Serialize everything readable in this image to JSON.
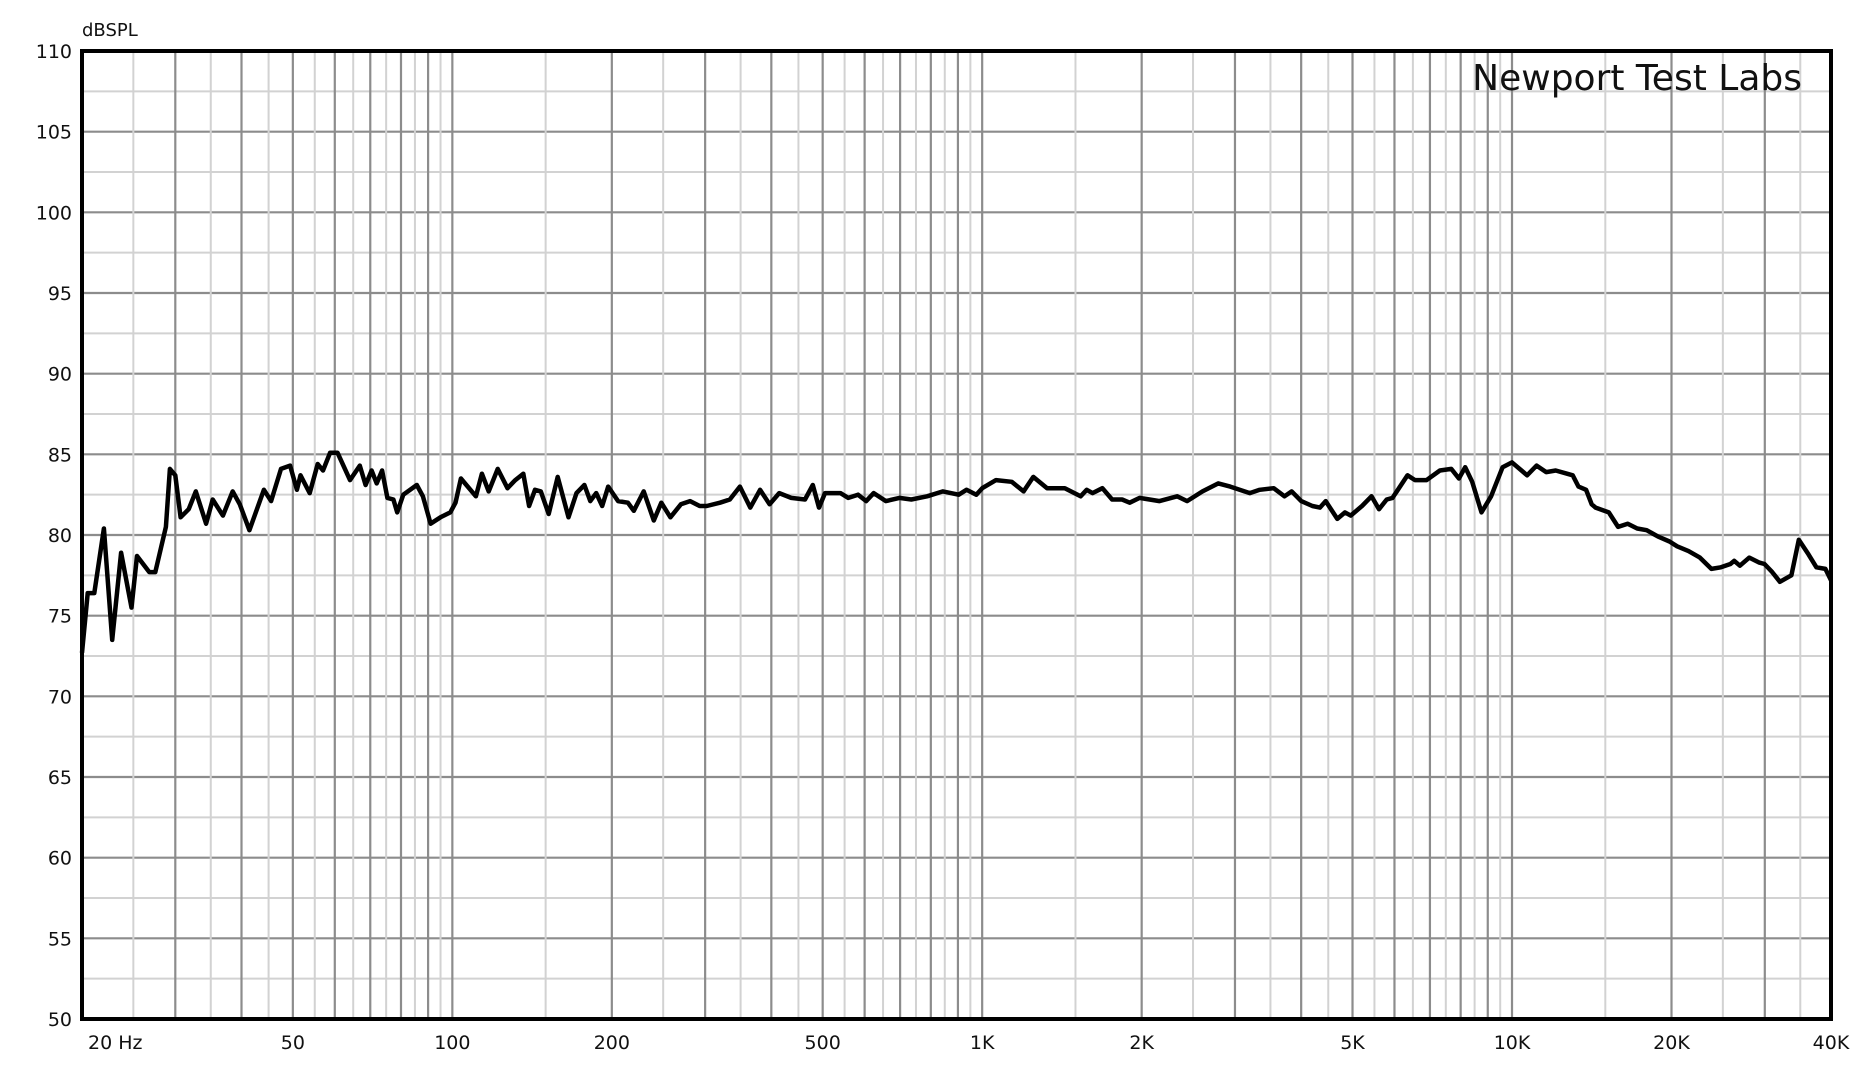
{
  "chart_data": {
    "type": "line",
    "title": "",
    "watermark": "Newport Test Labs",
    "ylabel": "dBSPL",
    "xlabel": "",
    "x_scale": "log",
    "xlim": [
      20,
      40000
    ],
    "ylim": [
      50,
      110
    ],
    "grid": true,
    "line_color": "#000000",
    "grid_major_color": "#8c8c8c",
    "grid_minor_color": "#d2d2d2",
    "y_ticks": [
      50,
      55,
      60,
      65,
      70,
      75,
      80,
      85,
      90,
      95,
      100,
      105,
      110
    ],
    "y_tick_labels": [
      "50",
      "55",
      "60",
      "65",
      "70",
      "75",
      "80",
      "85",
      "90",
      "95",
      "100",
      "105",
      "110"
    ],
    "x_ticks": [
      20,
      50,
      100,
      200,
      500,
      1000,
      2000,
      5000,
      10000,
      20000,
      40000
    ],
    "x_tick_labels": [
      "20  Hz",
      "50",
      "100",
      "200",
      "500",
      "1K",
      "2K",
      "5K",
      "10K",
      "20K",
      "40K"
    ],
    "series": [
      {
        "points": [
          [
            20,
            72.7
          ],
          [
            20.5,
            76.4
          ],
          [
            21.1,
            76.4
          ],
          [
            22.0,
            80.4
          ],
          [
            22.8,
            73.5
          ],
          [
            23.7,
            78.9
          ],
          [
            24.8,
            75.5
          ],
          [
            25.4,
            78.7
          ],
          [
            26.8,
            77.7
          ],
          [
            27.5,
            77.7
          ],
          [
            28.8,
            80.5
          ],
          [
            29.3,
            84.1
          ],
          [
            30.0,
            83.7
          ],
          [
            30.7,
            81.1
          ],
          [
            31.8,
            81.6
          ],
          [
            32.8,
            82.7
          ],
          [
            34.3,
            80.7
          ],
          [
            35.3,
            82.2
          ],
          [
            36.9,
            81.2
          ],
          [
            38.5,
            82.7
          ],
          [
            39.7,
            81.9
          ],
          [
            41.4,
            80.3
          ],
          [
            44.1,
            82.8
          ],
          [
            45.5,
            82.1
          ],
          [
            47.5,
            84.1
          ],
          [
            49.4,
            84.3
          ],
          [
            50.9,
            82.8
          ],
          [
            51.7,
            83.7
          ],
          [
            53.8,
            82.6
          ],
          [
            55.7,
            84.4
          ],
          [
            57.0,
            84.0
          ],
          [
            58.8,
            85.1
          ],
          [
            60.7,
            85.1
          ],
          [
            64.1,
            83.4
          ],
          [
            66.9,
            84.3
          ],
          [
            68.6,
            83.1
          ],
          [
            70.4,
            84.0
          ],
          [
            72.0,
            83.2
          ],
          [
            73.7,
            84.0
          ],
          [
            75.4,
            82.3
          ],
          [
            77.4,
            82.2
          ],
          [
            78.7,
            81.4
          ],
          [
            80.8,
            82.5
          ],
          [
            85.7,
            83.1
          ],
          [
            88.0,
            82.4
          ],
          [
            91.0,
            80.7
          ],
          [
            95.0,
            81.1
          ],
          [
            99.1,
            81.4
          ],
          [
            101.4,
            82.0
          ],
          [
            103.8,
            83.5
          ],
          [
            110.8,
            82.4
          ],
          [
            113.7,
            83.8
          ],
          [
            117.1,
            82.7
          ],
          [
            121.8,
            84.1
          ],
          [
            127.1,
            82.9
          ],
          [
            131.5,
            83.4
          ],
          [
            136.1,
            83.8
          ],
          [
            139.6,
            81.8
          ],
          [
            143.2,
            82.8
          ],
          [
            146.9,
            82.7
          ],
          [
            152.0,
            81.3
          ],
          [
            158.1,
            83.6
          ],
          [
            165.7,
            81.1
          ],
          [
            171.5,
            82.6
          ],
          [
            177.5,
            83.1
          ],
          [
            182.1,
            82.1
          ],
          [
            186.9,
            82.6
          ],
          [
            191.8,
            81.8
          ],
          [
            196.9,
            83.0
          ],
          [
            205.5,
            82.1
          ],
          [
            214.5,
            82.0
          ],
          [
            220.0,
            81.5
          ],
          [
            229.7,
            82.7
          ],
          [
            240.0,
            80.9
          ],
          [
            248.0,
            82.0
          ],
          [
            258.0,
            81.1
          ],
          [
            270.0,
            81.9
          ],
          [
            281.0,
            82.1
          ],
          [
            293.0,
            81.8
          ],
          [
            302,
            81.8
          ],
          [
            320,
            82.0
          ],
          [
            334,
            82.2
          ],
          [
            349,
            83.0
          ],
          [
            365,
            81.7
          ],
          [
            381,
            82.8
          ],
          [
            397,
            81.9
          ],
          [
            414,
            82.6
          ],
          [
            436,
            82.3
          ],
          [
            463,
            82.2
          ],
          [
            479,
            83.1
          ],
          [
            492,
            81.7
          ],
          [
            505,
            82.6
          ],
          [
            540,
            82.6
          ],
          [
            559,
            82.3
          ],
          [
            583,
            82.5
          ],
          [
            604,
            82.1
          ],
          [
            624,
            82.6
          ],
          [
            658,
            82.1
          ],
          [
            698,
            82.3
          ],
          [
            735,
            82.2
          ],
          [
            787,
            82.4
          ],
          [
            843,
            82.7
          ],
          [
            903,
            82.5
          ],
          [
            934,
            82.8
          ],
          [
            975,
            82.5
          ],
          [
            1000,
            82.9
          ],
          [
            1062,
            83.4
          ],
          [
            1137,
            83.3
          ],
          [
            1197,
            82.7
          ],
          [
            1249,
            83.6
          ],
          [
            1326,
            82.9
          ],
          [
            1432,
            82.9
          ],
          [
            1534,
            82.4
          ],
          [
            1575,
            82.8
          ],
          [
            1615,
            82.6
          ],
          [
            1686,
            82.9
          ],
          [
            1759,
            82.2
          ],
          [
            1837,
            82.2
          ],
          [
            1899,
            82.0
          ],
          [
            1982,
            82.3
          ],
          [
            2161,
            82.1
          ],
          [
            2334,
            82.4
          ],
          [
            2437,
            82.1
          ],
          [
            2605,
            82.7
          ],
          [
            2790,
            83.2
          ],
          [
            2939,
            83.0
          ],
          [
            3200,
            82.6
          ],
          [
            3340,
            82.8
          ],
          [
            3550,
            82.9
          ],
          [
            3720,
            82.4
          ],
          [
            3838,
            82.7
          ],
          [
            4000,
            82.1
          ],
          [
            4200,
            81.8
          ],
          [
            4340,
            81.7
          ],
          [
            4450,
            82.1
          ],
          [
            4680,
            81.0
          ],
          [
            4840,
            81.4
          ],
          [
            4960,
            81.2
          ],
          [
            5210,
            81.8
          ],
          [
            5430,
            82.4
          ],
          [
            5610,
            81.6
          ],
          [
            5800,
            82.2
          ],
          [
            5950,
            82.3
          ],
          [
            6350,
            83.7
          ],
          [
            6560,
            83.4
          ],
          [
            6900,
            83.4
          ],
          [
            7310,
            84.0
          ],
          [
            7680,
            84.1
          ],
          [
            7940,
            83.5
          ],
          [
            8160,
            84.2
          ],
          [
            8410,
            83.3
          ],
          [
            8760,
            81.4
          ],
          [
            9130,
            82.4
          ],
          [
            9600,
            84.2
          ],
          [
            10000,
            84.5
          ],
          [
            10420,
            84.0
          ],
          [
            10680,
            83.7
          ],
          [
            11130,
            84.3
          ],
          [
            11600,
            83.9
          ],
          [
            12090,
            84.0
          ],
          [
            12700,
            83.8
          ],
          [
            13020,
            83.7
          ],
          [
            13350,
            83.0
          ],
          [
            13800,
            82.8
          ],
          [
            14140,
            81.9
          ],
          [
            14380,
            81.7
          ],
          [
            15230,
            81.4
          ],
          [
            15860,
            80.5
          ],
          [
            16530,
            80.7
          ],
          [
            17230,
            80.4
          ],
          [
            17960,
            80.3
          ],
          [
            18870,
            79.9
          ],
          [
            19830,
            79.6
          ],
          [
            20490,
            79.3
          ],
          [
            21530,
            79.0
          ],
          [
            22630,
            78.6
          ],
          [
            23790,
            77.9
          ],
          [
            24790,
            78.0
          ],
          [
            25830,
            78.2
          ],
          [
            26260,
            78.4
          ],
          [
            26920,
            78.1
          ],
          [
            28050,
            78.6
          ],
          [
            29230,
            78.3
          ],
          [
            29960,
            78.2
          ],
          [
            30980,
            77.7
          ],
          [
            32040,
            77.1
          ],
          [
            33670,
            77.5
          ],
          [
            34780,
            79.7
          ],
          [
            36280,
            78.8
          ],
          [
            37540,
            78.0
          ],
          [
            39030,
            77.9
          ],
          [
            40000,
            77.2
          ]
        ]
      }
    ]
  }
}
